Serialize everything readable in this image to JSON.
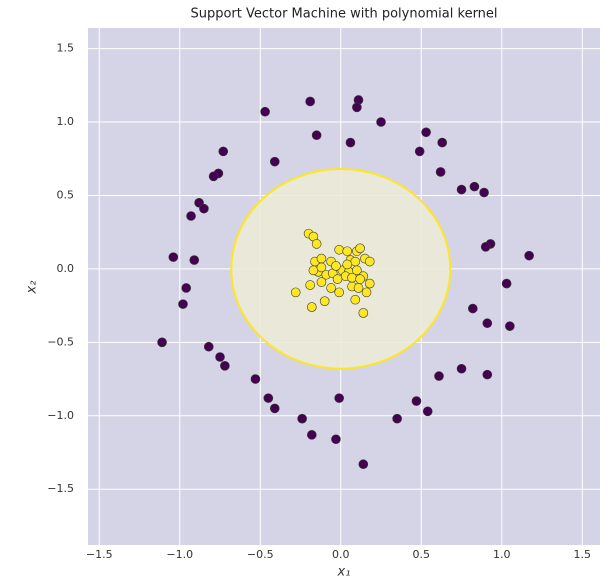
{
  "chart_data": {
    "type": "scatter",
    "title": "Support Vector Machine with polynomial kernel",
    "x_label": "x₁",
    "y_label": "x₂",
    "xlim": [
      -1.57,
      1.61
    ],
    "ylim": [
      -1.88,
      1.64
    ],
    "xticks": [
      {
        "value": -1.5,
        "label": "−1.5"
      },
      {
        "value": -1.0,
        "label": "−1.0"
      },
      {
        "value": -0.5,
        "label": "−0.5"
      },
      {
        "value": 0,
        "label": "0.0"
      },
      0.5,
      {
        "value": 1.0,
        "label": "1.0"
      },
      1.5
    ],
    "yticks": [
      {
        "value": -1.5,
        "label": "−1.5"
      },
      {
        "value": -1.0,
        "label": "−1.0"
      },
      {
        "value": -0.5,
        "label": "−0.5"
      },
      {
        "value": 0,
        "label": "0.0"
      },
      0.5,
      {
        "value": 1.0,
        "label": "1.0"
      },
      1.5
    ],
    "grid": true,
    "decision_boundary": {
      "radius": 0.68,
      "color": "#fde725"
    },
    "series": [
      {
        "color": "#440154",
        "x": [
          -0.47,
          -0.19,
          0.11,
          0.1,
          0.25,
          -0.15,
          0.06,
          0.53,
          0.63,
          0.49,
          -0.73,
          -0.41,
          0.62,
          -0.76,
          -0.79,
          0.75,
          0.83,
          0.89,
          -0.88,
          -0.85,
          -0.93,
          0.93,
          0.9,
          1.17,
          -1.04,
          -0.91,
          -0.96,
          -0.98,
          1.03,
          0.82,
          0.91,
          1.05,
          -1.11,
          -0.82,
          -0.75,
          -0.72,
          -0.53,
          0.75,
          0.61,
          0.91,
          -0.45,
          -0.41,
          -0.01,
          0.47,
          0.54,
          0.35,
          -0.24,
          -0.18,
          -0.03,
          0.14
        ],
        "y": [
          1.07,
          1.14,
          1.15,
          1.1,
          1.0,
          0.91,
          0.86,
          0.93,
          0.86,
          0.8,
          0.8,
          0.73,
          0.66,
          0.65,
          0.63,
          0.54,
          0.56,
          0.52,
          0.45,
          0.41,
          0.36,
          0.17,
          0.15,
          0.09,
          0.08,
          0.06,
          -0.13,
          -0.24,
          -0.1,
          -0.27,
          -0.37,
          -0.39,
          -0.5,
          -0.53,
          -0.6,
          -0.66,
          -0.75,
          -0.68,
          -0.73,
          -0.72,
          -0.88,
          -0.95,
          -0.88,
          -0.9,
          -0.97,
          -1.02,
          -1.02,
          -1.13,
          -1.16,
          -1.33
        ]
      },
      {
        "color": "#fde725",
        "x": [
          -0.2,
          -0.17,
          -0.15,
          -0.01,
          0.04,
          0.1,
          0.12,
          0.06,
          0.15,
          0.18,
          0.09,
          -0.16,
          -0.12,
          -0.06,
          -0.14,
          -0.17,
          -0.09,
          -0.05,
          0.01,
          0.05,
          0.1,
          0.14,
          0.03,
          -0.12,
          -0.02,
          -0.19,
          -0.28,
          0.07,
          0.11,
          0.18,
          0.16,
          -0.01,
          0.09,
          -0.1,
          -0.18,
          0.14,
          -0.12,
          0.04,
          -0.03,
          0.07,
          0.12,
          -0.06
        ],
        "y": [
          0.24,
          0.22,
          0.17,
          0.13,
          0.12,
          0.12,
          0.14,
          0.06,
          0.07,
          0.05,
          0.05,
          0.05,
          0.07,
          0.05,
          -0.02,
          -0.01,
          -0.04,
          -0.03,
          -0.01,
          -0.02,
          -0.01,
          -0.05,
          -0.05,
          -0.09,
          -0.07,
          -0.11,
          -0.16,
          -0.12,
          -0.13,
          -0.1,
          -0.16,
          -0.16,
          -0.21,
          -0.22,
          -0.26,
          -0.3,
          0.01,
          0.03,
          0.02,
          -0.06,
          -0.07,
          -0.13
        ]
      }
    ]
  }
}
